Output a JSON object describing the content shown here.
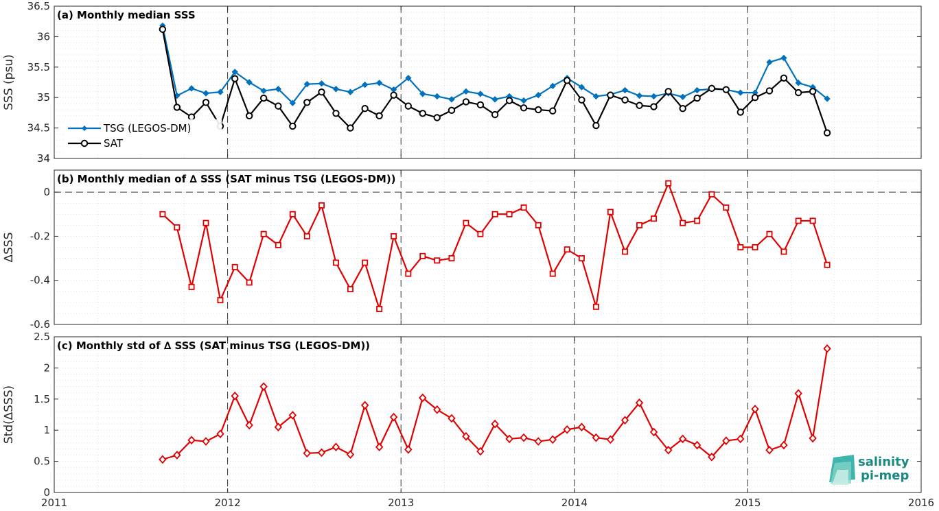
{
  "chart_data": [
    {
      "type": "line",
      "title": "(a) Monthly median SSS",
      "ylabel": "SSS (psu)",
      "xlim": [
        2011,
        2016
      ],
      "ylim": [
        34,
        36.5
      ],
      "yticks": [
        "34",
        "34.5",
        "35",
        "35.5",
        "36",
        "36.5"
      ],
      "ytick_values": [
        34,
        34.5,
        35,
        35.5,
        36,
        36.5
      ],
      "grid": "minor dotted",
      "legend_position": "left-middle",
      "series": [
        {
          "name": "TSG (LEGOS-DM)",
          "color": "#0072bd",
          "marker": "diamond-filled",
          "x": [
            2011.625,
            2011.708,
            2011.792,
            2011.875,
            2011.958,
            2012.042,
            2012.125,
            2012.208,
            2012.292,
            2012.375,
            2012.458,
            2012.542,
            2012.625,
            2012.708,
            2012.792,
            2012.875,
            2012.958,
            2013.042,
            2013.125,
            2013.208,
            2013.292,
            2013.375,
            2013.458,
            2013.542,
            2013.625,
            2013.708,
            2013.792,
            2013.875,
            2013.958,
            2014.042,
            2014.125,
            2014.208,
            2014.292,
            2014.375,
            2014.458,
            2014.542,
            2014.625,
            2014.708,
            2014.792,
            2014.875,
            2014.958,
            2015.042,
            2015.125,
            2015.208,
            2015.292,
            2015.375,
            2015.458
          ],
          "values": [
            36.18,
            35.03,
            35.15,
            35.07,
            35.09,
            35.42,
            35.25,
            35.11,
            35.14,
            34.91,
            35.22,
            35.23,
            35.14,
            35.09,
            35.21,
            35.24,
            35.13,
            35.32,
            35.06,
            35.02,
            34.97,
            35.1,
            35.06,
            34.97,
            35.02,
            34.95,
            35.04,
            35.19,
            35.32,
            35.17,
            35.02,
            35.05,
            35.12,
            35.03,
            35.02,
            35.07,
            35.01,
            35.12,
            35.14,
            35.13,
            35.08,
            35.08,
            35.58,
            35.65,
            35.24,
            35.17,
            34.98
          ]
        },
        {
          "name": "SAT",
          "color": "#000000",
          "marker": "circle-open",
          "x": [
            2011.625,
            2011.708,
            2011.792,
            2011.875,
            2011.958,
            2012.042,
            2012.125,
            2012.208,
            2012.292,
            2012.375,
            2012.458,
            2012.542,
            2012.625,
            2012.708,
            2012.792,
            2012.875,
            2012.958,
            2013.042,
            2013.125,
            2013.208,
            2013.292,
            2013.375,
            2013.458,
            2013.542,
            2013.625,
            2013.708,
            2013.792,
            2013.875,
            2013.958,
            2014.042,
            2014.125,
            2014.208,
            2014.292,
            2014.375,
            2014.458,
            2014.542,
            2014.625,
            2014.708,
            2014.792,
            2014.875,
            2014.958,
            2015.042,
            2015.125,
            2015.208,
            2015.292,
            2015.375,
            2015.458
          ],
          "values": [
            36.12,
            34.84,
            34.68,
            34.92,
            34.53,
            35.31,
            34.7,
            34.99,
            34.86,
            34.53,
            34.92,
            35.09,
            34.74,
            34.5,
            34.82,
            34.7,
            35.04,
            34.86,
            34.74,
            34.67,
            34.79,
            34.93,
            34.88,
            34.72,
            34.95,
            34.83,
            34.8,
            34.78,
            35.28,
            34.96,
            34.54,
            35.04,
            34.96,
            34.87,
            34.85,
            35.1,
            34.82,
            34.99,
            35.15,
            35.13,
            34.76,
            35.0,
            35.11,
            35.32,
            35.08,
            35.1,
            34.42
          ]
        }
      ]
    },
    {
      "type": "line",
      "title": "(b) Monthly median of ∆ SSS (SAT minus TSG (LEGOS-DM))",
      "ylabel": "∆SSS",
      "xlim": [
        2011,
        2016
      ],
      "ylim": [
        -0.6,
        0.1
      ],
      "yticks": [
        "-0.6",
        "-0.4",
        "-0.2",
        "0"
      ],
      "ytick_values": [
        -0.6,
        -0.4,
        -0.2,
        0
      ],
      "zero_line": "dashed",
      "series": [
        {
          "color": "#e00000",
          "marker": "square-open",
          "x": [
            2011.625,
            2011.708,
            2011.792,
            2011.875,
            2011.958,
            2012.042,
            2012.125,
            2012.208,
            2012.292,
            2012.375,
            2012.458,
            2012.542,
            2012.625,
            2012.708,
            2012.792,
            2012.875,
            2012.958,
            2013.042,
            2013.125,
            2013.208,
            2013.292,
            2013.375,
            2013.458,
            2013.542,
            2013.625,
            2013.708,
            2013.792,
            2013.875,
            2013.958,
            2014.042,
            2014.125,
            2014.208,
            2014.292,
            2014.375,
            2014.458,
            2014.542,
            2014.625,
            2014.708,
            2014.792,
            2014.875,
            2014.958,
            2015.042,
            2015.125,
            2015.208,
            2015.292,
            2015.375,
            2015.458
          ],
          "values": [
            -0.1,
            -0.16,
            -0.43,
            -0.14,
            -0.49,
            -0.34,
            -0.41,
            -0.19,
            -0.24,
            -0.1,
            -0.2,
            -0.06,
            -0.32,
            -0.44,
            -0.32,
            -0.53,
            -0.2,
            -0.37,
            -0.29,
            -0.31,
            -0.3,
            -0.14,
            -0.19,
            -0.1,
            -0.1,
            -0.07,
            -0.15,
            -0.37,
            -0.26,
            -0.3,
            -0.52,
            -0.09,
            -0.27,
            -0.15,
            -0.12,
            0.04,
            -0.14,
            -0.13,
            -0.01,
            -0.07,
            -0.25,
            -0.25,
            -0.19,
            -0.27,
            -0.13,
            -0.13,
            -0.33
          ]
        }
      ]
    },
    {
      "type": "line",
      "title": "(c) Monthly std of ∆ SSS (SAT minus TSG (LEGOS-DM))",
      "ylabel": "Std(∆SSS)",
      "xlim": [
        2011,
        2016
      ],
      "ylim": [
        0,
        2.5
      ],
      "yticks": [
        "0",
        "0.5",
        "1",
        "1.5",
        "2",
        "2.5"
      ],
      "ytick_values": [
        0,
        0.5,
        1,
        1.5,
        2,
        2.5
      ],
      "xticks": [
        "2011",
        "2012",
        "2013",
        "2014",
        "2015",
        "2016"
      ],
      "xtick_values": [
        2011,
        2012,
        2013,
        2014,
        2015,
        2016
      ],
      "series": [
        {
          "color": "#e00000",
          "marker": "diamond-open",
          "x": [
            2011.625,
            2011.708,
            2011.792,
            2011.875,
            2011.958,
            2012.042,
            2012.125,
            2012.208,
            2012.292,
            2012.375,
            2012.458,
            2012.542,
            2012.625,
            2012.708,
            2012.792,
            2012.875,
            2012.958,
            2013.042,
            2013.125,
            2013.208,
            2013.292,
            2013.375,
            2013.458,
            2013.542,
            2013.625,
            2013.708,
            2013.792,
            2013.875,
            2013.958,
            2014.042,
            2014.125,
            2014.208,
            2014.292,
            2014.375,
            2014.458,
            2014.542,
            2014.625,
            2014.708,
            2014.792,
            2014.875,
            2014.958,
            2015.042,
            2015.125,
            2015.208,
            2015.292,
            2015.375,
            2015.458
          ],
          "values": [
            0.53,
            0.6,
            0.84,
            0.82,
            0.94,
            1.55,
            1.08,
            1.7,
            1.05,
            1.24,
            0.63,
            0.64,
            0.73,
            0.61,
            1.4,
            0.73,
            1.21,
            0.69,
            1.52,
            1.33,
            1.19,
            0.9,
            0.66,
            1.1,
            0.86,
            0.88,
            0.82,
            0.85,
            1.01,
            1.05,
            0.88,
            0.85,
            1.16,
            1.44,
            0.97,
            0.68,
            0.86,
            0.76,
            0.57,
            0.83,
            0.86,
            1.34,
            0.68,
            0.76,
            1.59,
            0.87,
            2.31
          ]
        }
      ]
    }
  ],
  "logo": {
    "line1": "salinity",
    "line2": "pi-mep",
    "color": "#1a8a84"
  }
}
